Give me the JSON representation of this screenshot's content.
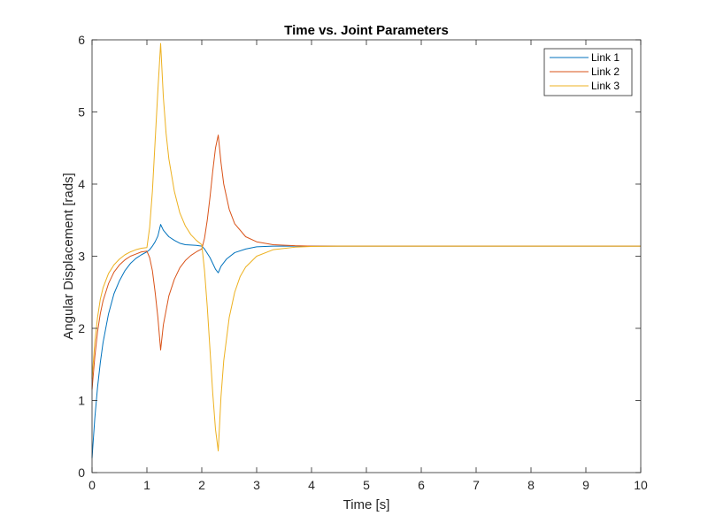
{
  "chart_data": {
    "type": "line",
    "title": "Time vs. Joint Parameters",
    "xlabel": "Time [s]",
    "ylabel": "Angular Displacement [rads]",
    "xlim": [
      0,
      10
    ],
    "ylim": [
      0,
      6
    ],
    "xticks": [
      "0",
      "1",
      "2",
      "3",
      "4",
      "5",
      "6",
      "7",
      "8",
      "9",
      "10"
    ],
    "yticks": [
      "0",
      "1",
      "2",
      "3",
      "4",
      "5",
      "6"
    ],
    "grid": false,
    "legend_position": "top-right",
    "series": [
      {
        "name": "Link 1",
        "color": "#0072BD",
        "points": [
          [
            0,
            0.2
          ],
          [
            0.05,
            0.75
          ],
          [
            0.1,
            1.18
          ],
          [
            0.15,
            1.52
          ],
          [
            0.2,
            1.8
          ],
          [
            0.3,
            2.2
          ],
          [
            0.4,
            2.48
          ],
          [
            0.5,
            2.66
          ],
          [
            0.6,
            2.8
          ],
          [
            0.7,
            2.9
          ],
          [
            0.8,
            2.97
          ],
          [
            0.9,
            3.02
          ],
          [
            1.0,
            3.06
          ],
          [
            1.05,
            3.09
          ],
          [
            1.1,
            3.14
          ],
          [
            1.15,
            3.2
          ],
          [
            1.2,
            3.28
          ],
          [
            1.25,
            3.44
          ],
          [
            1.3,
            3.36
          ],
          [
            1.4,
            3.27
          ],
          [
            1.5,
            3.22
          ],
          [
            1.6,
            3.18
          ],
          [
            1.7,
            3.16
          ],
          [
            1.8,
            3.155
          ],
          [
            1.9,
            3.15
          ],
          [
            2.0,
            3.14
          ],
          [
            2.05,
            3.1
          ],
          [
            2.1,
            3.04
          ],
          [
            2.15,
            2.98
          ],
          [
            2.2,
            2.9
          ],
          [
            2.25,
            2.82
          ],
          [
            2.3,
            2.77
          ],
          [
            2.35,
            2.86
          ],
          [
            2.45,
            2.96
          ],
          [
            2.6,
            3.05
          ],
          [
            2.8,
            3.1
          ],
          [
            3.0,
            3.13
          ],
          [
            3.3,
            3.14
          ],
          [
            3.7,
            3.14
          ],
          [
            4,
            3.14
          ],
          [
            10,
            3.14
          ]
        ]
      },
      {
        "name": "Link 2",
        "color": "#D95319",
        "points": [
          [
            0,
            1.15
          ],
          [
            0.05,
            1.6
          ],
          [
            0.1,
            1.95
          ],
          [
            0.15,
            2.2
          ],
          [
            0.2,
            2.38
          ],
          [
            0.3,
            2.62
          ],
          [
            0.4,
            2.78
          ],
          [
            0.5,
            2.88
          ],
          [
            0.6,
            2.95
          ],
          [
            0.7,
            3.0
          ],
          [
            0.8,
            3.03
          ],
          [
            0.9,
            3.06
          ],
          [
            1.0,
            3.07
          ],
          [
            1.05,
            2.98
          ],
          [
            1.1,
            2.8
          ],
          [
            1.15,
            2.5
          ],
          [
            1.2,
            2.15
          ],
          [
            1.25,
            1.7
          ],
          [
            1.3,
            2.05
          ],
          [
            1.4,
            2.45
          ],
          [
            1.5,
            2.68
          ],
          [
            1.6,
            2.84
          ],
          [
            1.7,
            2.94
          ],
          [
            1.8,
            3.01
          ],
          [
            1.9,
            3.06
          ],
          [
            2.0,
            3.1
          ],
          [
            2.05,
            3.25
          ],
          [
            2.1,
            3.5
          ],
          [
            2.15,
            3.82
          ],
          [
            2.2,
            4.18
          ],
          [
            2.25,
            4.5
          ],
          [
            2.3,
            4.68
          ],
          [
            2.35,
            4.3
          ],
          [
            2.4,
            4.0
          ],
          [
            2.5,
            3.65
          ],
          [
            2.6,
            3.45
          ],
          [
            2.8,
            3.27
          ],
          [
            3.0,
            3.2
          ],
          [
            3.3,
            3.16
          ],
          [
            3.7,
            3.145
          ],
          [
            4,
            3.14
          ],
          [
            10,
            3.14
          ]
        ]
      },
      {
        "name": "Link 3",
        "color": "#EDB120",
        "points": [
          [
            0,
            1.3
          ],
          [
            0.05,
            1.8
          ],
          [
            0.1,
            2.15
          ],
          [
            0.15,
            2.4
          ],
          [
            0.2,
            2.56
          ],
          [
            0.3,
            2.76
          ],
          [
            0.4,
            2.88
          ],
          [
            0.5,
            2.96
          ],
          [
            0.6,
            3.02
          ],
          [
            0.7,
            3.06
          ],
          [
            0.8,
            3.09
          ],
          [
            0.9,
            3.11
          ],
          [
            1.0,
            3.12
          ],
          [
            1.05,
            3.4
          ],
          [
            1.1,
            3.9
          ],
          [
            1.15,
            4.6
          ],
          [
            1.2,
            5.3
          ],
          [
            1.25,
            5.95
          ],
          [
            1.3,
            5.2
          ],
          [
            1.35,
            4.7
          ],
          [
            1.4,
            4.35
          ],
          [
            1.5,
            3.9
          ],
          [
            1.6,
            3.6
          ],
          [
            1.7,
            3.42
          ],
          [
            1.8,
            3.3
          ],
          [
            1.9,
            3.22
          ],
          [
            2.0,
            3.16
          ],
          [
            2.05,
            2.8
          ],
          [
            2.1,
            2.3
          ],
          [
            2.15,
            1.7
          ],
          [
            2.2,
            1.1
          ],
          [
            2.25,
            0.6
          ],
          [
            2.3,
            0.3
          ],
          [
            2.35,
            1.05
          ],
          [
            2.4,
            1.55
          ],
          [
            2.5,
            2.15
          ],
          [
            2.6,
            2.5
          ],
          [
            2.7,
            2.72
          ],
          [
            2.8,
            2.85
          ],
          [
            3.0,
            3.0
          ],
          [
            3.3,
            3.09
          ],
          [
            3.7,
            3.125
          ],
          [
            4,
            3.135
          ],
          [
            4.5,
            3.14
          ],
          [
            10,
            3.14
          ]
        ]
      }
    ]
  }
}
